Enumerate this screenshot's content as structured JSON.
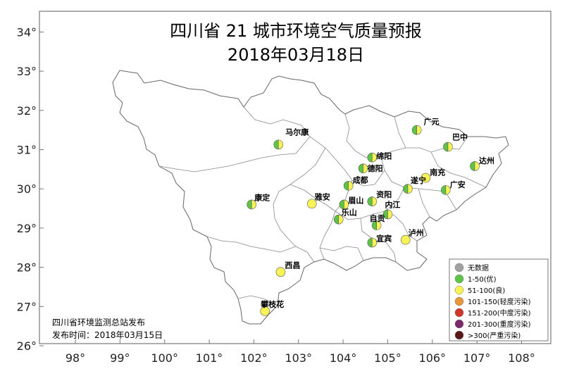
{
  "title": "四川省 21 城市环境空气质量预报",
  "date": "2018年03月18日",
  "publisher": "四川省环境监测总站发布",
  "publish_time": "发布时间：2018年03月15日",
  "axes": {
    "x_ticks": [
      98,
      99,
      100,
      101,
      102,
      103,
      104,
      105,
      106,
      107,
      108
    ],
    "y_ticks": [
      26,
      27,
      28,
      29,
      30,
      31,
      32,
      33,
      34
    ],
    "xlim": [
      97.3,
      108.6
    ],
    "ylim": [
      25.9,
      34.5
    ]
  },
  "colors": {
    "no_data": "#a0a0a0",
    "good": "#5ec447",
    "moderate": "#f7f255",
    "light": "#e8963a",
    "medium": "#d0372a",
    "heavy": "#7a2a6a",
    "severe": "#5a1818"
  },
  "legend": [
    {
      "label": "无数据",
      "color": "#a0a0a0"
    },
    {
      "label": "1-50(优)",
      "color": "#5ec447"
    },
    {
      "label": "51-100(良)",
      "color": "#f7f255"
    },
    {
      "label": "101-150(轻度污染)",
      "color": "#e8963a"
    },
    {
      "label": "151-200(中度污染)",
      "color": "#d0372a"
    },
    {
      "label": "201-300(重度污染)",
      "color": "#7a2a6a"
    },
    {
      "label": ">300(严重污染)",
      "color": "#5a1818"
    }
  ],
  "cities": [
    {
      "name": "广元",
      "lon": 105.65,
      "lat": 31.5,
      "range": "1-50 / 51-100"
    },
    {
      "name": "巴中",
      "lon": 106.35,
      "lat": 31.07,
      "range": "1-50 / 51-100"
    },
    {
      "name": "达州",
      "lon": 106.95,
      "lat": 30.58,
      "range": "1-50 / 51-100"
    },
    {
      "name": "绵阳",
      "lon": 104.65,
      "lat": 30.8,
      "range": "1-50 / 51-100"
    },
    {
      "name": "德阳",
      "lon": 104.45,
      "lat": 30.52,
      "range": "1-50 / 51-100"
    },
    {
      "name": "成都",
      "lon": 104.12,
      "lat": 30.08,
      "range": "1-50 / 51-100"
    },
    {
      "name": "南充",
      "lon": 105.85,
      "lat": 30.28,
      "range": "51-100"
    },
    {
      "name": "遂宁",
      "lon": 105.45,
      "lat": 30.0,
      "range": "1-50 / 51-100"
    },
    {
      "name": "广安",
      "lon": 106.3,
      "lat": 29.97,
      "range": "1-50 / 51-100"
    },
    {
      "name": "马尔康",
      "lon": 102.55,
      "lat": 31.13,
      "range": "1-50 / 51-100"
    },
    {
      "name": "康定",
      "lon": 101.95,
      "lat": 29.6,
      "range": "1-50 / 51-100"
    },
    {
      "name": "雅安",
      "lon": 103.3,
      "lat": 29.62,
      "range": "51-100"
    },
    {
      "name": "眉山",
      "lon": 104.02,
      "lat": 29.6,
      "range": "1-50 / 51-100"
    },
    {
      "name": "资阳",
      "lon": 104.65,
      "lat": 29.68,
      "range": "1-50 / 51-100"
    },
    {
      "name": "乐山",
      "lon": 103.9,
      "lat": 29.22,
      "range": "1-50 / 51-100"
    },
    {
      "name": "内江",
      "lon": 105.0,
      "lat": 29.35,
      "range": "1-50 / 51-100"
    },
    {
      "name": "自贡",
      "lon": 104.75,
      "lat": 29.07,
      "range": "1-50 / 51-100"
    },
    {
      "name": "宜宾",
      "lon": 104.65,
      "lat": 28.63,
      "range": "1-50 / 51-100"
    },
    {
      "name": "泸州",
      "lon": 105.4,
      "lat": 28.7,
      "range": "51-100"
    },
    {
      "name": "西昌",
      "lon": 102.6,
      "lat": 27.88,
      "range": "51-100"
    },
    {
      "name": "攀枝花",
      "lon": 102.25,
      "lat": 26.88,
      "range": "51-100"
    }
  ]
}
